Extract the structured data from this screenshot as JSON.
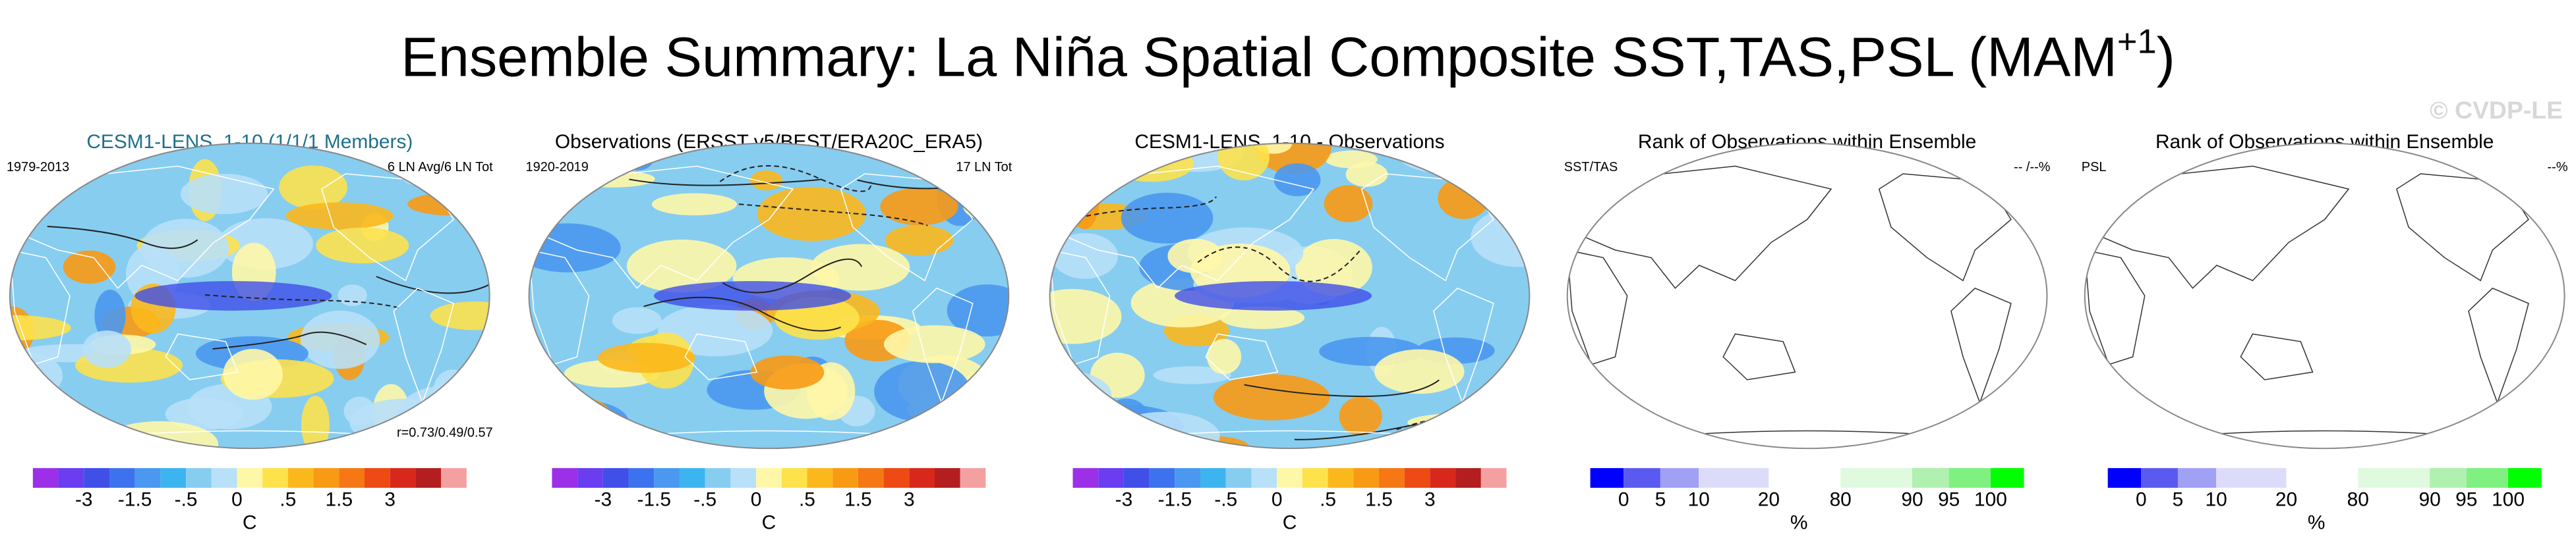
{
  "title": {
    "main": "Ensemble Summary: La Niña Spatial Composite SST,TAS,PSL (MAM",
    "superscript": "+1",
    "end": ")"
  },
  "watermark": "© CVDP-LE",
  "panels": [
    {
      "title": "CESM1-LENS_1-10 (1/1/1 Members)",
      "title_color": "#1f6f8b",
      "left_label": "1979-2013",
      "right_label": "6 LN Avg/6 LN Tot",
      "bottom_label": "r=0.73/0.49/0.57",
      "colorbar": {
        "colors": [
          "#9b30e8",
          "#6a3ef0",
          "#3f4fe8",
          "#3d72ee",
          "#4a98f0",
          "#3cb4f0",
          "#87cdf0",
          "#b8e0f8",
          "#fff7a8",
          "#fde24c",
          "#fbb81c",
          "#f89a14",
          "#f57814",
          "#ee4a14",
          "#d8281c",
          "#b41e1e",
          "#f4a0a0"
        ],
        "ticks": [
          "-3",
          "-1.5",
          "-.5",
          "0",
          ".5",
          "1.5",
          "3"
        ],
        "unit": "C"
      }
    },
    {
      "title": "Observations (ERSST v5/BEST/ERA20C_ERA5)",
      "title_color": "#000000",
      "left_label": "1920-2019",
      "right_label": "17 LN Tot",
      "colorbar": {
        "colors": [
          "#9b30e8",
          "#6a3ef0",
          "#3f4fe8",
          "#3d72ee",
          "#4a98f0",
          "#3cb4f0",
          "#87cdf0",
          "#b8e0f8",
          "#fff7a8",
          "#fde24c",
          "#fbb81c",
          "#f89a14",
          "#f57814",
          "#ee4a14",
          "#d8281c",
          "#b41e1e",
          "#f4a0a0"
        ],
        "ticks": [
          "-3",
          "-1.5",
          "-.5",
          "0",
          ".5",
          "1.5",
          "3"
        ],
        "unit": "C"
      }
    },
    {
      "title": "CESM1-LENS_1-10 - Observations",
      "title_color": "#000000",
      "colorbar": {
        "colors": [
          "#9b30e8",
          "#6a3ef0",
          "#3f4fe8",
          "#3d72ee",
          "#4a98f0",
          "#3cb4f0",
          "#87cdf0",
          "#b8e0f8",
          "#fff7a8",
          "#fde24c",
          "#fbb81c",
          "#f89a14",
          "#f57814",
          "#ee4a14",
          "#d8281c",
          "#b41e1e",
          "#f4a0a0"
        ],
        "ticks": [
          "-3",
          "-1.5",
          "-.5",
          "0",
          ".5",
          "1.5",
          "3"
        ],
        "unit": "C"
      }
    },
    {
      "title": "Rank of Observations within Ensemble",
      "title_color": "#000000",
      "left_label": "SST/TAS",
      "right_label": "-- /--%",
      "colorbar": {
        "colors": [
          "#0000ff",
          "#5a5af0",
          "#a0a0f5",
          "#dcdcfa",
          "#ffffff",
          "#e0fae0",
          "#b0f0b0",
          "#80f080",
          "#00ff00"
        ],
        "ticks": [
          "0",
          "5",
          "10",
          "20",
          "80",
          "90",
          "95",
          "100"
        ],
        "unit": "%"
      }
    },
    {
      "title": "Rank of Observations within Ensemble",
      "title_color": "#000000",
      "left_label": "PSL",
      "right_label": "--%",
      "colorbar": {
        "colors": [
          "#0000ff",
          "#5a5af0",
          "#a0a0f5",
          "#dcdcfa",
          "#ffffff",
          "#e0fae0",
          "#b0f0b0",
          "#80f080",
          "#00ff00"
        ],
        "ticks": [
          "0",
          "5",
          "10",
          "20",
          "80",
          "90",
          "95",
          "100"
        ],
        "unit": "%"
      }
    }
  ]
}
